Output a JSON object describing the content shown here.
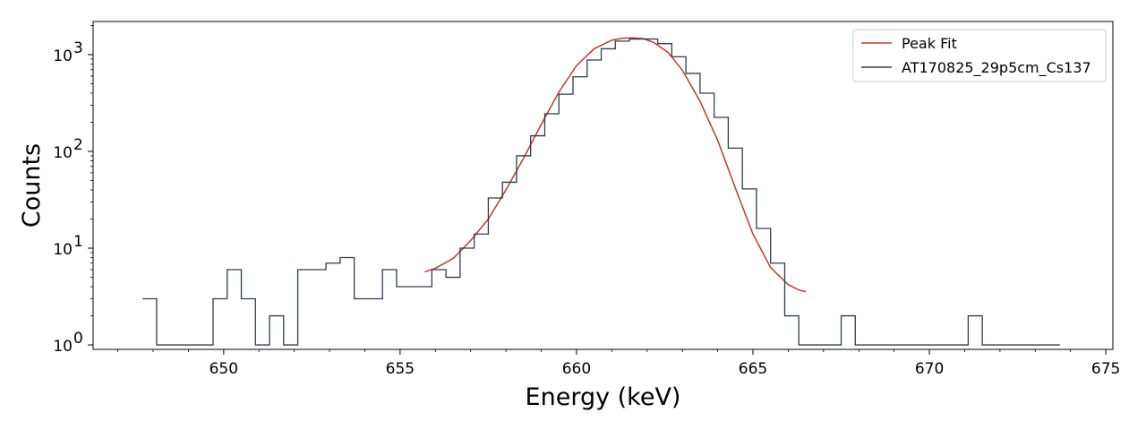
{
  "chart_data": {
    "type": "line",
    "title": "",
    "xlabel": "Energy (keV)",
    "ylabel": "Counts",
    "xlim": [
      646.3,
      675.2
    ],
    "ylim": [
      0.9,
      2200
    ],
    "y_scale": "log",
    "x_ticks": [
      650,
      655,
      660,
      665,
      670,
      675
    ],
    "x_tick_labels": [
      "650",
      "655",
      "660",
      "665",
      "670",
      "675"
    ],
    "y_ticks": [
      1,
      10,
      100,
      1000
    ],
    "y_tick_labels": [
      "10",
      "10",
      "10",
      "10"
    ],
    "y_tick_exponents": [
      "0",
      "1",
      "2",
      "3"
    ],
    "grid": false,
    "legend_position": "top-right",
    "series": [
      {
        "name": "Peak Fit",
        "style": "line",
        "color": "#c0392b",
        "x": [
          655.7,
          656.0,
          656.5,
          657.0,
          657.5,
          658.0,
          658.5,
          659.0,
          659.5,
          660.0,
          660.5,
          661.0,
          661.3,
          661.6,
          661.9,
          662.2,
          662.6,
          663.0,
          663.5,
          664.0,
          664.5,
          665.0,
          665.5,
          666.0,
          666.3,
          666.5
        ],
        "y": [
          5.7,
          6.2,
          7.8,
          12,
          20,
          40,
          85,
          190,
          410,
          770,
          1150,
          1410,
          1480,
          1490,
          1460,
          1330,
          1050,
          690,
          330,
          130,
          42,
          14,
          6.3,
          4.2,
          3.7,
          3.55
        ]
      },
      {
        "name": "AT170825_29p5cm_Cs137",
        "style": "step",
        "color": "#2c3e50",
        "edges": [
          647.7,
          648.1,
          649.7,
          650.1,
          650.5,
          650.9,
          651.3,
          651.7,
          652.1,
          652.9,
          653.3,
          653.7,
          654.5,
          654.9,
          655.9,
          656.3,
          656.7,
          657.1,
          657.5,
          657.9,
          658.3,
          658.7,
          659.1,
          659.5,
          659.9,
          660.3,
          660.7,
          661.1,
          661.5,
          661.9,
          662.3,
          662.7,
          663.1,
          663.5,
          663.9,
          664.3,
          664.7,
          665.1,
          665.5,
          665.9,
          666.3,
          667.5,
          667.9,
          671.1,
          671.5,
          673.7
        ],
        "counts": [
          3,
          1,
          3,
          6,
          3,
          1,
          2,
          1,
          6,
          7,
          8,
          3,
          6,
          4,
          6,
          5,
          10,
          14,
          33,
          48,
          90,
          145,
          245,
          390,
          590,
          880,
          1150,
          1380,
          1450,
          1450,
          1300,
          950,
          640,
          400,
          225,
          108,
          41,
          16,
          7,
          2,
          1,
          2,
          1,
          2,
          1
        ]
      }
    ]
  }
}
